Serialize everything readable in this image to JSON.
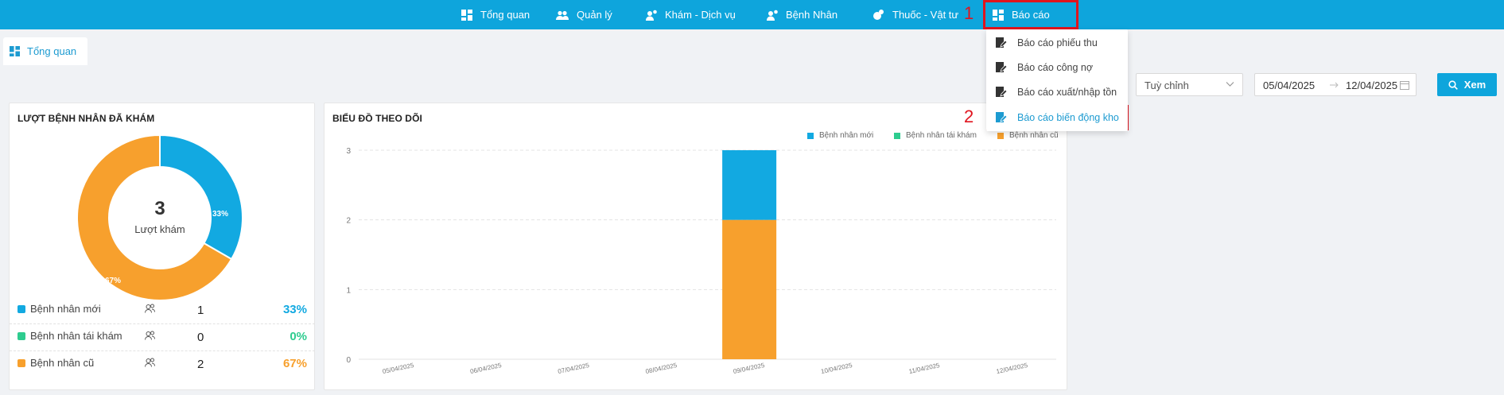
{
  "nav": {
    "items": [
      {
        "label": "Tổng quan",
        "icon": "dashboard-icon"
      },
      {
        "label": "Quản lý",
        "icon": "users-icon"
      },
      {
        "label": "Khám - Dịch vụ",
        "icon": "user-location-icon"
      },
      {
        "label": "Bệnh Nhân",
        "icon": "user-location-icon"
      },
      {
        "label": "Thuốc - Vật tư",
        "icon": "pills-icon"
      },
      {
        "label": "Báo cáo",
        "icon": "dashboard-icon"
      }
    ]
  },
  "annotations": {
    "one": "1",
    "two": "2"
  },
  "tabs": [
    {
      "label": "Tổng quan"
    }
  ],
  "report_menu": {
    "items": [
      {
        "label": "Báo cáo phiếu thu"
      },
      {
        "label": "Báo cáo công nợ"
      },
      {
        "label": "Báo cáo xuất/nhập tồn"
      },
      {
        "label": "Báo cáo biến động kho"
      }
    ]
  },
  "filters": {
    "colon": ":",
    "range_type": "Tuỳ chỉnh",
    "date_from": "05/04/2025",
    "date_to": "12/04/2025",
    "view_button": "Xem"
  },
  "patients_card": {
    "title": "LƯỢT BỆNH NHÂN ĐÃ KHÁM",
    "total": "3",
    "total_label": "Lượt khám",
    "rows": [
      {
        "label": "Bệnh nhân mới",
        "count": "1",
        "percent": "33%",
        "color": "#12a9e1"
      },
      {
        "label": "Bệnh nhân tái khám",
        "count": "0",
        "percent": "0%",
        "color": "#2ecc8f"
      },
      {
        "label": "Bệnh nhân cũ",
        "count": "2",
        "percent": "67%",
        "color": "#f7a02d"
      }
    ],
    "slice_labels": {
      "new": "33%",
      "returning": "0%",
      "old": "67%"
    }
  },
  "chart_card": {
    "title": "BIỂU ĐỒ THEO DÕI"
  },
  "colors": {
    "primary": "#0ea5dc",
    "new": "#12a9e1",
    "returning": "#2ecc8f",
    "old": "#f7a02d",
    "annotation": "#e0141e"
  },
  "chart_data": [
    {
      "type": "pie",
      "title": "LƯỢT BỆNH NHÂN ĐÃ KHÁM",
      "categories": [
        "Bệnh nhân mới",
        "Bệnh nhân tái khám",
        "Bệnh nhân cũ"
      ],
      "values": [
        1,
        0,
        2
      ],
      "percent_labels": [
        "33%",
        "0%",
        "67%"
      ]
    },
    {
      "type": "bar",
      "title": "BIỂU ĐỒ THEO DÕI",
      "stacked": true,
      "categories": [
        "05/04/2025",
        "06/04/2025",
        "07/04/2025",
        "08/04/2025",
        "09/04/2025",
        "10/04/2025",
        "11/04/2025",
        "12/04/2025"
      ],
      "series": [
        {
          "name": "Bệnh nhân mới",
          "color": "#12a9e1",
          "values": [
            0,
            0,
            0,
            0,
            1,
            0,
            0,
            0
          ]
        },
        {
          "name": "Bệnh nhân tái khám",
          "color": "#2ecc8f",
          "values": [
            0,
            0,
            0,
            0,
            0,
            0,
            0,
            0
          ]
        },
        {
          "name": "Bệnh nhân cũ",
          "color": "#f7a02d",
          "values": [
            0,
            0,
            0,
            0,
            2,
            0,
            0,
            0
          ]
        }
      ],
      "y_ticks": [
        "0",
        "1",
        "2",
        "3"
      ],
      "ylim": [
        0,
        3
      ],
      "grid": true,
      "legend": "top-right"
    }
  ]
}
